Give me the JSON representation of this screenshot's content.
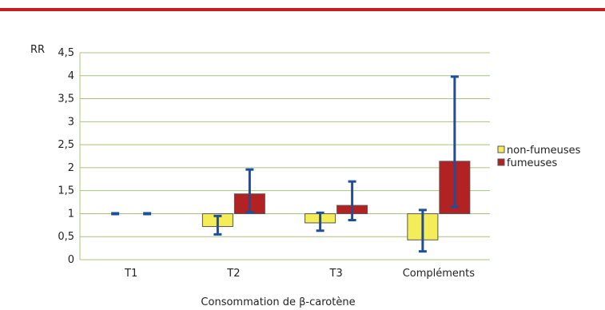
{
  "chart_data": {
    "type": "bar",
    "ylabel": "RR",
    "xlabel": "Consommation de β-carotène",
    "categories": [
      "T1",
      "T2",
      "T3",
      "Compléments"
    ],
    "ylim": [
      0,
      4.5
    ],
    "yticks": [
      "0",
      "0,5",
      "1",
      "1,5",
      "2",
      "2,5",
      "3",
      "3,5",
      "4",
      "4,5"
    ],
    "baseline": 1,
    "grid": true,
    "legend_position": "right",
    "series": [
      {
        "name": "non-fumeuses",
        "color": "#f5ec5a",
        "values": [
          1.0,
          0.72,
          0.8,
          0.43
        ],
        "error_low": [
          1.0,
          0.55,
          0.63,
          0.18
        ],
        "error_high": [
          1.0,
          0.95,
          1.02,
          1.08
        ]
      },
      {
        "name": "fumeuses",
        "color": "#b22222",
        "values": [
          1.0,
          1.43,
          1.18,
          2.14
        ],
        "error_low": [
          1.0,
          1.03,
          0.86,
          1.15
        ],
        "error_high": [
          1.0,
          1.96,
          1.7,
          3.98
        ]
      }
    ],
    "colors": {
      "top_rule": "#c81e1e",
      "grid": "#a8c47e",
      "error_bar": "#1f4e9c",
      "outline": "#555555"
    }
  }
}
